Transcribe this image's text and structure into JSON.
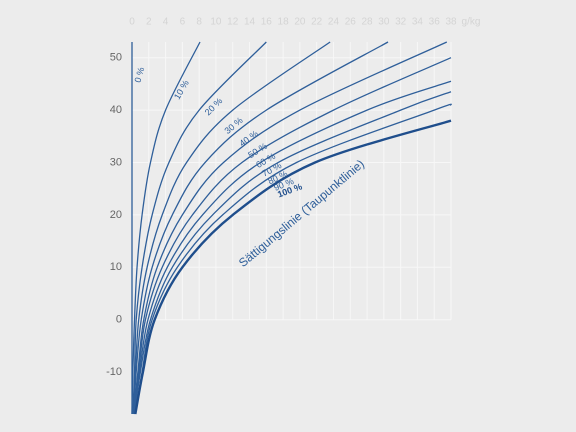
{
  "chart_data": {
    "type": "line",
    "x_unit": "g/kg",
    "annotation": "Sättigungslinie (Taupunktlinie)",
    "xlim": [
      0,
      38
    ],
    "ylim": [
      -18,
      53
    ],
    "xticks": [
      0,
      2,
      4,
      6,
      8,
      10,
      12,
      14,
      16,
      18,
      20,
      22,
      24,
      26,
      28,
      30,
      32,
      34,
      36,
      38
    ],
    "yticks": [
      -10,
      0,
      10,
      20,
      30,
      40,
      50
    ],
    "grid": true,
    "series": [
      {
        "name": "0 %",
        "color": "#2f5f9a",
        "y": [
          -18,
          53
        ],
        "x": [
          0,
          0
        ]
      },
      {
        "name": "10 %",
        "color": "#2f5f9a",
        "y": [
          -18,
          -10,
          0,
          10,
          20,
          30,
          40,
          53
        ],
        "x": [
          0,
          0.1,
          0.3,
          0.6,
          1.2,
          2.2,
          4,
          8.1
        ]
      },
      {
        "name": "20 %",
        "color": "#2f5f9a",
        "y": [
          -18,
          -10,
          0,
          10,
          20,
          30,
          40,
          53
        ],
        "x": [
          0.1,
          0.3,
          0.5,
          1.2,
          2.4,
          4.4,
          8,
          16
        ]
      },
      {
        "name": "30 %",
        "color": "#2f5f9a",
        "y": [
          -18,
          -10,
          0,
          10,
          20,
          30,
          40,
          53
        ],
        "x": [
          0.1,
          0.4,
          0.8,
          1.8,
          3.6,
          6.5,
          12,
          23.6
        ]
      },
      {
        "name": "40 %",
        "color": "#2f5f9a",
        "y": [
          -18,
          -10,
          0,
          10,
          20,
          30,
          40,
          53
        ],
        "x": [
          0.2,
          0.5,
          1.1,
          2.4,
          4.8,
          8.7,
          16,
          30.5
        ]
      },
      {
        "name": "50 %",
        "color": "#2f5f9a",
        "y": [
          -18,
          -10,
          0,
          10,
          20,
          30,
          40,
          53
        ],
        "x": [
          0.2,
          0.7,
          1.4,
          3,
          6,
          10.9,
          20,
          37.5
        ]
      },
      {
        "name": "60 %",
        "color": "#2f5f9a",
        "y": [
          -18,
          -10,
          0,
          10,
          20,
          30,
          40,
          50
        ],
        "x": [
          0.2,
          0.8,
          1.6,
          3.6,
          7.2,
          13.1,
          24,
          38
        ]
      },
      {
        "name": "70 %",
        "color": "#2f5f9a",
        "y": [
          -18,
          -10,
          0,
          10,
          20,
          30,
          40,
          45.5
        ],
        "x": [
          0.3,
          0.9,
          1.9,
          4.2,
          8.4,
          15.3,
          28,
          38
        ]
      },
      {
        "name": "80 %",
        "color": "#2f5f9a",
        "y": [
          -18,
          -10,
          0,
          10,
          20,
          30,
          40,
          43.5
        ],
        "x": [
          0.3,
          1,
          2.2,
          4.8,
          9.6,
          17.4,
          32,
          38
        ]
      },
      {
        "name": "90 %",
        "color": "#2f5f9a",
        "y": [
          -18,
          -10,
          0,
          10,
          20,
          30,
          40,
          41
        ],
        "x": [
          0.4,
          1.2,
          2.4,
          5.4,
          10.8,
          19.6,
          36,
          38
        ]
      },
      {
        "name": "100 %",
        "color": "#1f4e8c",
        "y": [
          -18,
          -10,
          0,
          10,
          20,
          30,
          38
        ],
        "x": [
          0.4,
          1.3,
          2.7,
          6,
          12,
          21.8,
          38
        ]
      }
    ]
  }
}
